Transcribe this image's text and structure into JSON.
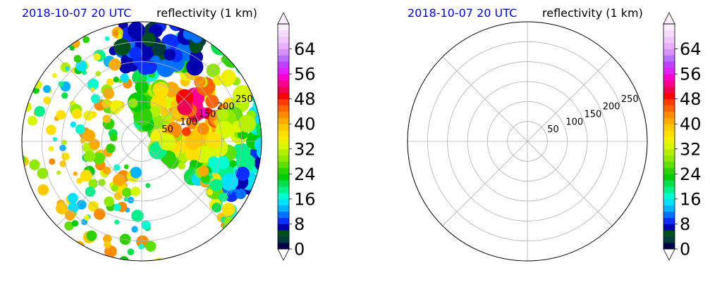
{
  "chart_data": [
    {
      "type": "heatmap",
      "projection": "polar",
      "title_left": "2018-10-07 20 UTC",
      "title_right": "reflectivity (1 km)",
      "radial_ticks": [
        50,
        100,
        150,
        200,
        250
      ],
      "radial_max": 300,
      "angular_gridlines": 8,
      "grid": true,
      "data_present": true,
      "colorbar": {
        "ticks": [
          "0",
          "8",
          "16",
          "24",
          "32",
          "40",
          "48",
          "56",
          "64"
        ],
        "vmin": 0,
        "vmax": 72,
        "step": 2,
        "extend": "both"
      }
    },
    {
      "type": "heatmap",
      "projection": "polar",
      "title_left": "2018-10-07 20 UTC",
      "title_right": "reflectivity (1 km)",
      "radial_ticks": [
        50,
        100,
        150,
        200,
        250
      ],
      "radial_max": 300,
      "angular_gridlines": 8,
      "grid": true,
      "data_present": false,
      "colorbar": {
        "ticks": [
          "0",
          "8",
          "16",
          "24",
          "32",
          "40",
          "48",
          "56",
          "64"
        ],
        "vmin": 0,
        "vmax": 72,
        "step": 2,
        "extend": "both"
      }
    }
  ],
  "colors": {
    "title_time": "#0000ff",
    "palette": [
      "#00004a",
      "#003a3a",
      "#004f1f",
      "#0000b0",
      "#0a2eff",
      "#0070ff",
      "#00b4ff",
      "#00e0ff",
      "#00ffd0",
      "#00f08a",
      "#00e04a",
      "#00cc00",
      "#2ed200",
      "#60e000",
      "#90ea00",
      "#b4f000",
      "#d8f800",
      "#f0f000",
      "#ffe000",
      "#ffc800",
      "#ffaa00",
      "#ff8c00",
      "#ff6400",
      "#ff3c00",
      "#ff0000",
      "#f00050",
      "#ff0090",
      "#ff00d0",
      "#e020ff",
      "#c040ff",
      "#b870ff",
      "#d890ff",
      "#e8b0ff",
      "#f0c8ff",
      "#f6dcff",
      "#fbeeff"
    ]
  }
}
